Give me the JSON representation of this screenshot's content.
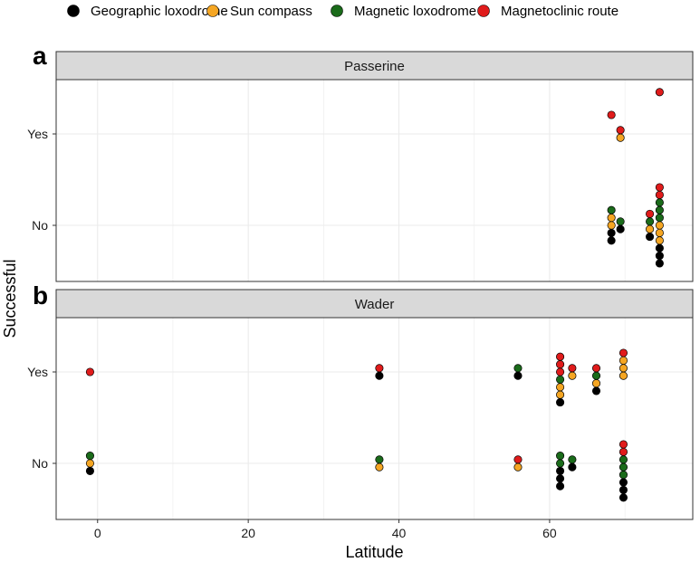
{
  "chart_data": {
    "type": "scatter",
    "xlabel": "Latitude",
    "ylabel": "Successful",
    "xlim": [
      -5.5,
      79
    ],
    "xticks": [
      0,
      20,
      40,
      60
    ],
    "yticks": [
      "No",
      "Yes"
    ],
    "legend_position": "top",
    "legend": [
      {
        "name": "Geographic loxodrome",
        "color": "#000000"
      },
      {
        "name": "Sun compass",
        "color": "#f5a623"
      },
      {
        "name": "Magnetic loxodrome",
        "color": "#1a6b1a"
      },
      {
        "name": "Magnetoclinic route",
        "color": "#e01b1b"
      }
    ],
    "panels": [
      {
        "letter": "a",
        "strip": "Passerine",
        "points": [
          {
            "lat": 68.2,
            "outcome": "No",
            "stack": [
              "Geographic loxodrome",
              "Geographic loxodrome",
              "Sun compass",
              "Sun compass",
              "Magnetic loxodrome"
            ]
          },
          {
            "lat": 69.4,
            "outcome": "No",
            "stack": [
              "Geographic loxodrome",
              "Magnetic loxodrome"
            ]
          },
          {
            "lat": 73.3,
            "outcome": "No",
            "stack": [
              "Geographic loxodrome",
              "Sun compass",
              "Magnetic loxodrome",
              "Magnetoclinic route"
            ]
          },
          {
            "lat": 74.6,
            "outcome": "No",
            "stack": [
              "Geographic loxodrome",
              "Geographic loxodrome",
              "Geographic loxodrome",
              "Sun compass",
              "Sun compass",
              "Sun compass",
              "Magnetic loxodrome",
              "Magnetic loxodrome",
              "Magnetic loxodrome",
              "Magnetoclinic route",
              "Magnetoclinic route"
            ]
          },
          {
            "lat": 68.2,
            "outcome": "Yes",
            "stack": [
              "Magnetoclinic route"
            ],
            "offset": 2.5
          },
          {
            "lat": 69.4,
            "outcome": "Yes",
            "stack": [
              "Sun compass",
              "Magnetoclinic route"
            ]
          },
          {
            "lat": 74.6,
            "outcome": "Yes",
            "stack": [
              "Magnetoclinic route"
            ],
            "offset": 5.5
          }
        ]
      },
      {
        "letter": "b",
        "strip": "Wader",
        "points": [
          {
            "lat": -1.0,
            "outcome": "No",
            "stack": [
              "Geographic loxodrome",
              "Sun compass",
              "Magnetic loxodrome"
            ]
          },
          {
            "lat": -1.0,
            "outcome": "Yes",
            "stack": [
              "Magnetoclinic route"
            ]
          },
          {
            "lat": 37.4,
            "outcome": "No",
            "stack": [
              "Sun compass",
              "Magnetic loxodrome"
            ]
          },
          {
            "lat": 37.4,
            "outcome": "Yes",
            "stack": [
              "Geographic loxodrome",
              "Magnetoclinic route"
            ]
          },
          {
            "lat": 55.8,
            "outcome": "No",
            "stack": [
              "Sun compass",
              "Magnetoclinic route"
            ]
          },
          {
            "lat": 55.8,
            "outcome": "Yes",
            "stack": [
              "Geographic loxodrome",
              "Magnetic loxodrome"
            ]
          },
          {
            "lat": 61.4,
            "outcome": "No",
            "stack": [
              "Geographic loxodrome",
              "Geographic loxodrome",
              "Geographic loxodrome",
              "Magnetic loxodrome",
              "Magnetic loxodrome"
            ],
            "offset": -1
          },
          {
            "lat": 61.4,
            "outcome": "Yes",
            "stack": [
              "Geographic loxodrome",
              "Sun compass",
              "Sun compass",
              "Magnetic loxodrome",
              "Magnetoclinic route",
              "Magnetoclinic route",
              "Magnetoclinic route"
            ],
            "offset": -1
          },
          {
            "lat": 63.0,
            "outcome": "No",
            "stack": [
              "Geographic loxodrome",
              "Magnetic loxodrome"
            ]
          },
          {
            "lat": 63.0,
            "outcome": "Yes",
            "stack": [
              "Sun compass",
              "Magnetoclinic route"
            ]
          },
          {
            "lat": 66.2,
            "outcome": "Yes",
            "stack": [
              "Geographic loxodrome",
              "Sun compass",
              "Magnetic loxodrome",
              "Magnetoclinic route"
            ],
            "offset": -1
          },
          {
            "lat": 69.8,
            "outcome": "No",
            "stack": [
              "Geographic loxodrome",
              "Geographic loxodrome",
              "Geographic loxodrome",
              "Magnetic loxodrome",
              "Magnetic loxodrome",
              "Magnetic loxodrome",
              "Magnetoclinic route",
              "Magnetoclinic route"
            ],
            "offset": -1
          },
          {
            "lat": 69.8,
            "outcome": "Yes",
            "stack": [
              "Sun compass",
              "Sun compass",
              "Sun compass",
              "Magnetoclinic route"
            ],
            "offset": 1
          }
        ]
      }
    ]
  }
}
